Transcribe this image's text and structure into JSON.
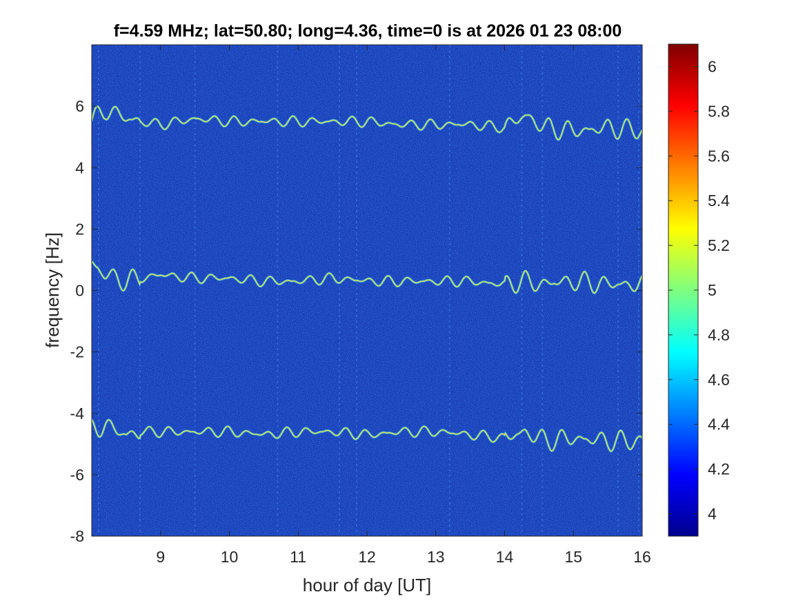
{
  "chart_data": {
    "type": "heatmap",
    "title": "f=4.59 MHz;  lat=50.80; long=4.36, time=0 is at 2026 01 23 08:00",
    "xlabel": "hour of day [UT]",
    "ylabel": "frequency [Hz]",
    "xlim": [
      8,
      16
    ],
    "ylim": [
      -8,
      8
    ],
    "xticks": [
      "9",
      "10",
      "11",
      "12",
      "13",
      "14",
      "15",
      "16"
    ],
    "yticks": [
      "-8",
      "-6",
      "-4",
      "-2",
      "0",
      "2",
      "4",
      "6"
    ],
    "colorbar": {
      "colormap": "jet",
      "limits": [
        3.9,
        6.1
      ],
      "ticks": [
        "4",
        "4.2",
        "4.4",
        "4.6",
        "4.8",
        "5",
        "5.2",
        "5.4",
        "5.6",
        "5.8",
        "6"
      ]
    },
    "traces": [
      {
        "name": "",
        "center_hz": 5.6,
        "x": [
          8.0,
          8.2,
          8.5,
          8.7,
          9.0,
          9.5,
          10.0,
          10.5,
          11.0,
          11.5,
          12.0,
          12.5,
          13.0,
          13.5,
          14.0,
          14.3,
          14.6,
          15.0,
          15.5,
          16.0
        ],
        "y": [
          5.5,
          5.9,
          5.6,
          5.5,
          5.4,
          5.6,
          5.5,
          5.5,
          5.5,
          5.5,
          5.5,
          5.4,
          5.4,
          5.4,
          5.3,
          5.7,
          5.3,
          5.2,
          5.3,
          5.2
        ]
      },
      {
        "name": "",
        "center_hz": 0.3,
        "x": [
          8.0,
          8.2,
          8.5,
          8.7,
          9.0,
          9.5,
          10.0,
          10.5,
          11.0,
          11.5,
          12.0,
          12.5,
          13.0,
          13.5,
          14.0,
          14.3,
          14.6,
          15.0,
          15.5,
          16.0
        ],
        "y": [
          0.9,
          0.5,
          0.3,
          0.4,
          0.5,
          0.4,
          0.4,
          0.3,
          0.3,
          0.4,
          0.3,
          0.3,
          0.3,
          0.3,
          0.2,
          0.3,
          0.2,
          0.3,
          0.2,
          0.2
        ]
      },
      {
        "name": "",
        "center_hz": -4.6,
        "x": [
          8.0,
          8.2,
          8.5,
          8.7,
          9.0,
          9.5,
          10.0,
          10.5,
          11.0,
          11.5,
          12.0,
          12.5,
          13.0,
          13.5,
          14.0,
          14.3,
          14.6,
          15.0,
          15.5,
          16.0
        ],
        "y": [
          -4.5,
          -4.4,
          -4.7,
          -4.6,
          -4.6,
          -4.6,
          -4.6,
          -4.7,
          -4.6,
          -4.6,
          -4.7,
          -4.6,
          -4.6,
          -4.7,
          -4.8,
          -4.6,
          -4.9,
          -4.8,
          -4.9,
          -4.9
        ]
      }
    ],
    "background_level": 4.1,
    "grid": false,
    "legend": "none"
  }
}
